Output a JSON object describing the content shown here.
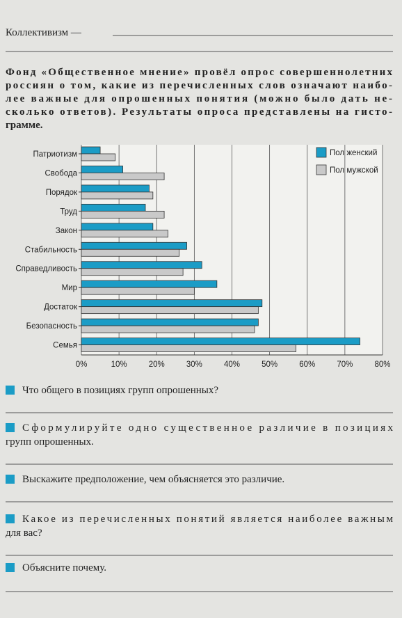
{
  "header": {
    "text": "Коллективизм —"
  },
  "intro": [
    "Фонд «Общественное мнение» провёл опрос совершеннолетних",
    "россиян о том, какие из перечисленных слов означают наибо-",
    "лее важные для опрошенных понятия (можно было дать не-",
    "сколько ответов). Результаты опроса представлены на гисто-",
    "грамме."
  ],
  "chart_data": {
    "type": "bar",
    "orientation": "horizontal",
    "categories": [
      "Патриотизм",
      "Свобода",
      "Порядок",
      "Труд",
      "Закон",
      "Стабильность",
      "Справедливость",
      "Мир",
      "Достаток",
      "Безопасность",
      "Семья"
    ],
    "series": [
      {
        "name": "Пол женский",
        "color": "#1b9cc6",
        "values": [
          5,
          11,
          18,
          17,
          19,
          28,
          32,
          36,
          48,
          47,
          74
        ]
      },
      {
        "name": "Пол мужской",
        "color": "#c9c9c9",
        "values": [
          9,
          22,
          19,
          22,
          23,
          26,
          27,
          30,
          47,
          46,
          57
        ]
      }
    ],
    "xlim": [
      0,
      80
    ],
    "xticks": [
      {
        "value": 0,
        "label": "0%"
      },
      {
        "value": 10,
        "label": "10%"
      },
      {
        "value": 20,
        "label": "20%"
      },
      {
        "value": 30,
        "label": "30%"
      },
      {
        "value": 40,
        "label": "40%"
      },
      {
        "value": 50,
        "label": "50%"
      },
      {
        "value": 60,
        "label": "60%"
      },
      {
        "value": 70,
        "label": "70%"
      },
      {
        "value": 80,
        "label": "80%"
      }
    ],
    "grid": true,
    "legend": "top-right"
  },
  "questions": [
    {
      "lines": [
        "Что общего в позициях групп опрошенных?"
      ]
    },
    {
      "lines": [
        "Сформулируйте одно существенное различие в позициях",
        "групп опрошенных."
      ]
    },
    {
      "lines": [
        "Выскажите предположение, чем объясняется это различие."
      ]
    },
    {
      "lines": [
        "Какое из перечисленных понятий является наиболее важным",
        "для вас?"
      ]
    },
    {
      "lines": [
        "Объясните почему."
      ]
    }
  ]
}
